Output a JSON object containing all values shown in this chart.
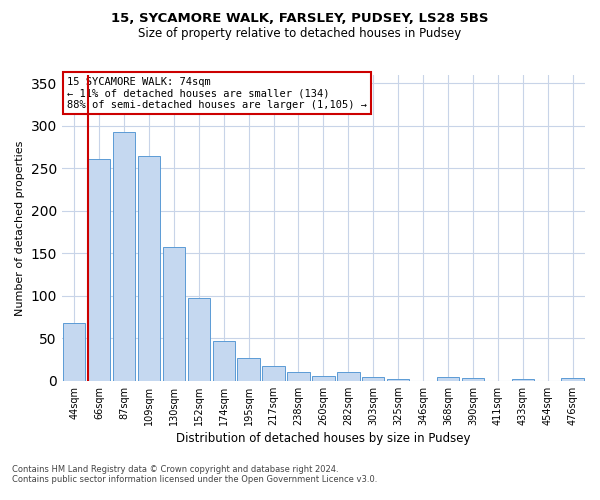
{
  "title1": "15, SYCAMORE WALK, FARSLEY, PUDSEY, LS28 5BS",
  "title2": "Size of property relative to detached houses in Pudsey",
  "xlabel": "Distribution of detached houses by size in Pudsey",
  "ylabel": "Number of detached properties",
  "categories": [
    "44sqm",
    "66sqm",
    "87sqm",
    "109sqm",
    "130sqm",
    "152sqm",
    "174sqm",
    "195sqm",
    "217sqm",
    "238sqm",
    "260sqm",
    "282sqm",
    "303sqm",
    "325sqm",
    "346sqm",
    "368sqm",
    "390sqm",
    "411sqm",
    "433sqm",
    "454sqm",
    "476sqm"
  ],
  "values": [
    68,
    261,
    293,
    265,
    158,
    98,
    47,
    27,
    18,
    10,
    6,
    10,
    4,
    2,
    0,
    4,
    3,
    0,
    2,
    0,
    3
  ],
  "bar_color": "#c5d8f0",
  "bar_edge_color": "#5b9bd5",
  "property_line_color": "#cc0000",
  "annotation_text": "15 SYCAMORE WALK: 74sqm\n← 11% of detached houses are smaller (134)\n88% of semi-detached houses are larger (1,105) →",
  "annotation_box_color": "#ffffff",
  "annotation_box_edge": "#cc0000",
  "footnote1": "Contains HM Land Registry data © Crown copyright and database right 2024.",
  "footnote2": "Contains public sector information licensed under the Open Government Licence v3.0.",
  "ylim": [
    0,
    360
  ],
  "yticks": [
    0,
    50,
    100,
    150,
    200,
    250,
    300,
    350
  ],
  "background_color": "#ffffff",
  "grid_color": "#c8d4e8",
  "title1_fontsize": 9.5,
  "title2_fontsize": 8.5,
  "ylabel_fontsize": 8,
  "xlabel_fontsize": 8.5,
  "tick_fontsize": 7,
  "annot_fontsize": 7.5,
  "footnote_fontsize": 6
}
